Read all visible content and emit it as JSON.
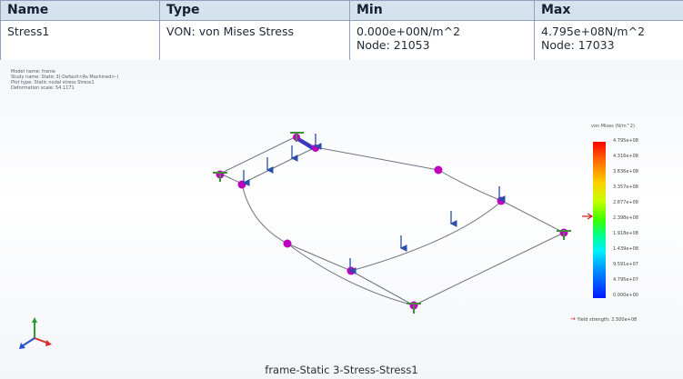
{
  "table": {
    "headers": [
      "Name",
      "Type",
      "Min",
      "Max"
    ],
    "row": {
      "name": "Stress1",
      "type": "VON: von Mises Stress",
      "min_value": "0.000e+00N/m^2",
      "min_node": "Node: 21053",
      "max_value": "4.795e+08N/m^2",
      "max_node": "Node: 17033"
    }
  },
  "model_info": [
    "Model name: frame",
    "Study name: Static 3(-Default<As Machined>-)",
    "Plot type: Static nodal stress Stress1",
    "Deformation scale: 54.1171"
  ],
  "legend": {
    "title": "von Mises (N/m^2)",
    "labels": [
      "4.795e+08",
      "4.316e+08",
      "3.836e+08",
      "3.357e+08",
      "2.877e+08",
      "2.398e+08",
      "1.918e+08",
      "1.439e+08",
      "9.591e+07",
      "4.795e+07",
      "0.000e+00"
    ],
    "yield_strength": "Yield strength: 2.500e+08",
    "colors": {
      "max": "#ff0000",
      "mid": "#3cff00",
      "min": "#0018ff"
    }
  },
  "caption": "frame-Static 3-Stress-Stress1",
  "icons": {
    "triad": "xyz-axis-triad-icon",
    "load": "load-arrow-icon",
    "fixture": "fixture-icon",
    "node": "node-marker-icon"
  },
  "colors": {
    "table_header_bg": "#d7e2ef",
    "table_border": "#8ea2bd",
    "frame_line": "#6f7680",
    "node_marker": "#c000c0",
    "load_arrow": "#2a4fa8",
    "fixture": "#3f8f3a"
  }
}
